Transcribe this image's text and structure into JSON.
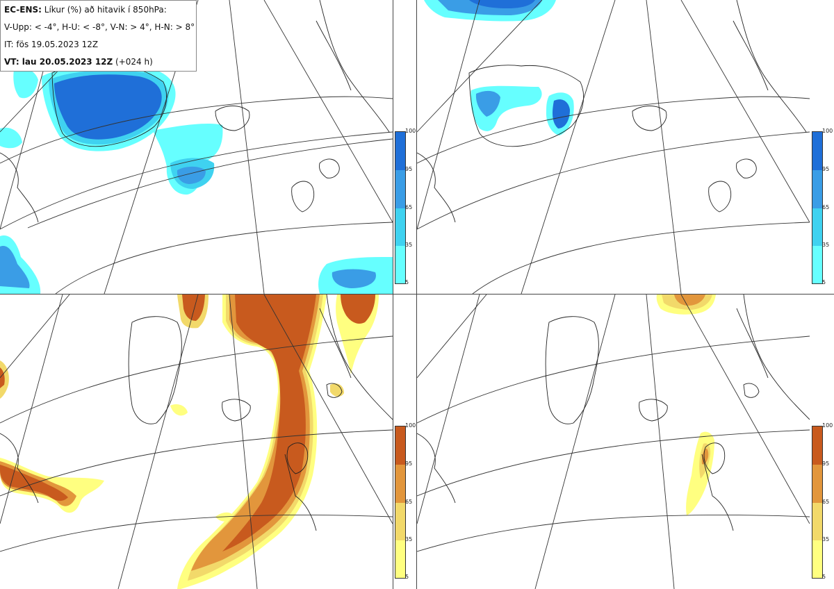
{
  "info": {
    "model": "EC-ENS:",
    "title": "Líkur (%) að hitavik í 850hPa:",
    "thresholds": "V-Upp: < -4°, H-U: < -8°, V-N: > 4°, H-N: > 8°",
    "initial_time": "IT: fös 19.05.2023 12Z",
    "valid_label": "VT: lau 20.05.2023 12Z",
    "lead": "(+024 h)"
  },
  "colorbar_ticks": [
    "100",
    "95",
    "65",
    "35",
    "5"
  ],
  "colors": {
    "cold": [
      "#66ffff",
      "#3fd2f0",
      "#3a9de6",
      "#1f6fd8"
    ],
    "warm": [
      "#ffff80",
      "#f2d96a",
      "#e2963c",
      "#c85a1e"
    ],
    "coast": "#222222",
    "grid": "#333333"
  }
}
